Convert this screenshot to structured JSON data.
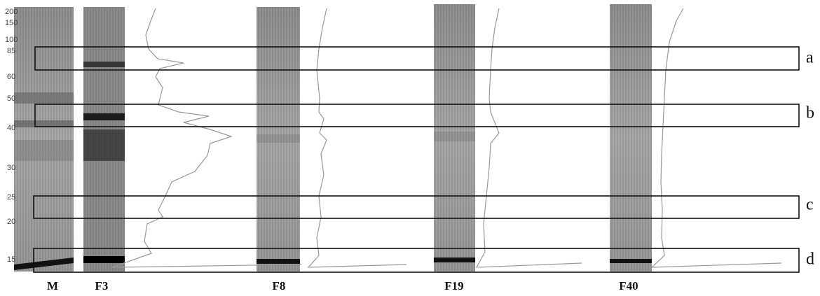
{
  "marker_labels": [
    "200",
    "150",
    "100",
    "85",
    "60",
    "50",
    "40",
    "30",
    "25",
    "20",
    "15"
  ],
  "lane_labels": [
    "M",
    "F3",
    "F8",
    "F19",
    "F40"
  ],
  "box_labels": [
    "a",
    "b",
    "c",
    "d"
  ]
}
